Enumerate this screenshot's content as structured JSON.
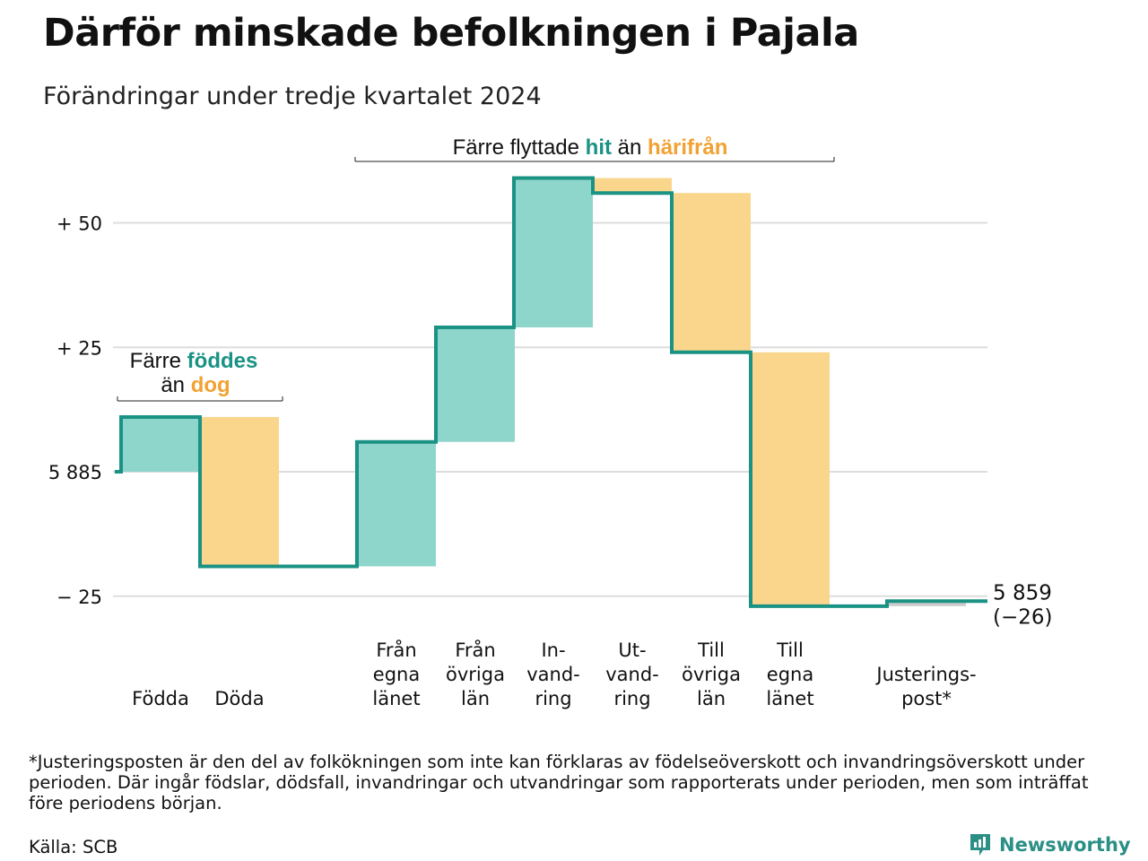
{
  "header": {
    "title": "Därför minskade befolkningen i Pajala",
    "subtitle": "Förändringar under tredje kvartalet 2024"
  },
  "chart_data": {
    "type": "waterfall",
    "start_value": 5885,
    "end_label_value": "5 859",
    "end_label_change": "(−26)",
    "ylim": [
      -27,
      61
    ],
    "y_ticks": [
      {
        "value": 50,
        "label": "+ 50"
      },
      {
        "value": 25,
        "label": "+ 25"
      },
      {
        "value": 0,
        "label": "5 885"
      },
      {
        "value": -25,
        "label": "− 25"
      }
    ],
    "categories": [
      {
        "label": [
          "Födda"
        ],
        "value": 11,
        "kind": "in"
      },
      {
        "label": [
          "Döda"
        ],
        "value": -30,
        "kind": "out"
      },
      {
        "label": [
          "Från",
          "egna",
          "länet"
        ],
        "value": 25,
        "kind": "in"
      },
      {
        "label": [
          "Från",
          "övriga",
          "län"
        ],
        "value": 23,
        "kind": "in"
      },
      {
        "label": [
          "In-",
          "vand-",
          "ring"
        ],
        "value": 30,
        "kind": "in"
      },
      {
        "label": [
          "Ut-",
          "vand-",
          "ring"
        ],
        "value": -3,
        "kind": "out"
      },
      {
        "label": [
          "Till",
          "övriga",
          "län"
        ],
        "value": -32,
        "kind": "out"
      },
      {
        "label": [
          "Till",
          "egna",
          "länet"
        ],
        "value": -51,
        "kind": "out"
      },
      {
        "label": [
          "Justerings-",
          "post*"
        ],
        "value": 1,
        "kind": "adj"
      }
    ],
    "annotations": {
      "births": {
        "line1": "Färre",
        "word_in": "föddes",
        "line2": "än",
        "word_out": "dog"
      },
      "migration": {
        "before": "Färre flyttade",
        "word_in": "hit",
        "middle": "än",
        "word_out": "härifrån"
      }
    },
    "colors": {
      "in_fill": "#8ed5cc",
      "out_fill": "#fad68c",
      "adj_fill": "#cccccc",
      "line": "#1a9284",
      "in_text": "#1a9284",
      "out_text": "#f1a233",
      "grid": "#dddddd"
    }
  },
  "footer": {
    "footnote": "*Justeringsposten är den del av folkökningen som inte kan förklaras av födelseöverskott och invandringsöverskott under perioden. Där ingår födslar, dödsfall, invandringar och utvandringar som rapporterats under perioden, men som inträffat före periodens början.",
    "source": "Källa: SCB",
    "logo_text": "Newsworthy"
  }
}
